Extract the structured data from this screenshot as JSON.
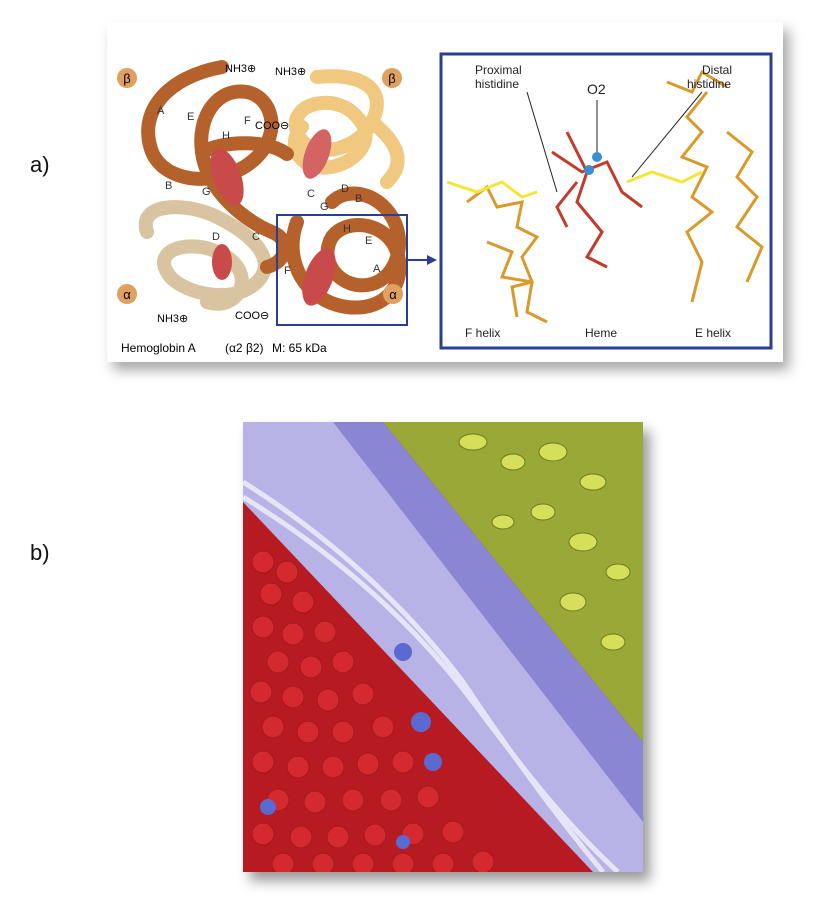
{
  "panels": {
    "a": "a)",
    "b": "b)"
  },
  "hemoglobin": {
    "chain_labels": [
      "β",
      "β",
      "α",
      "α"
    ],
    "termini": [
      "NH3⊕",
      "NH3⊕",
      "COO⊖",
      "NH3⊕",
      "COO⊖"
    ],
    "helix_letters_beta_left": [
      "A",
      "E",
      "F",
      "H",
      "B",
      "G",
      "D",
      "C"
    ],
    "helix_letters_alpha_right": [
      "C",
      "D",
      "B",
      "G",
      "H",
      "E",
      "A",
      "F"
    ],
    "caption_name": "Hemoglobin A",
    "caption_formula": "(α2 β2)",
    "caption_mass": "M: 65 kDa"
  },
  "heme_detail": {
    "proximal": [
      "Proximal",
      "histidine"
    ],
    "o2": "O2",
    "distal": [
      "Distal",
      "histidine"
    ],
    "bottom_labels": [
      "F helix",
      "Heme",
      "E helix"
    ]
  },
  "colors": {
    "frame": "#2a3f8f",
    "chain_dark": "#b5612c",
    "chain_light": "#f0c880",
    "chain_pale": "#d8c4a0",
    "heme": "#c94a4a",
    "helix_sticks": "#d99a2b",
    "histidine": "#f2e63a",
    "rbc_hemoglobin": "#d42a2f",
    "membrane": "#b7b3e6",
    "plasma_protein": "#c5d34a"
  }
}
